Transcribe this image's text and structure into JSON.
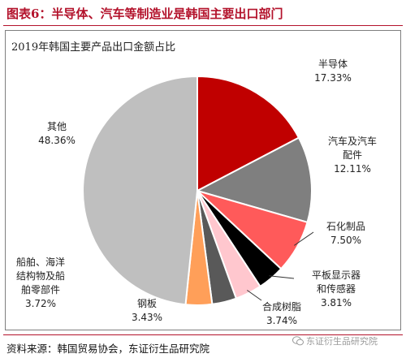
{
  "header": {
    "figure_title": "图表6：半导体、汽车等制造业是韩国主要出口部门"
  },
  "chart_data": {
    "type": "pie",
    "title": "2019年韩国主要产品出口金额占比",
    "slices": [
      {
        "label_lines": [
          "半导体"
        ],
        "value": 17.33,
        "display": "17.33%",
        "color": "#c00000"
      },
      {
        "label_lines": [
          "汽车及汽车",
          "配件"
        ],
        "value": 12.11,
        "display": "12.11%",
        "color": "#7f7f7f"
      },
      {
        "label_lines": [
          "石化制品"
        ],
        "value": 7.5,
        "display": "7.50%",
        "color": "#ff5a5a"
      },
      {
        "label_lines": [
          "平板显示器",
          "和传感器"
        ],
        "value": 3.81,
        "display": "3.81%",
        "color": "#000000"
      },
      {
        "label_lines": [
          "合成树脂"
        ],
        "value": 3.74,
        "display": "3.74%",
        "color": "#ffc7ce"
      },
      {
        "label_lines": [
          "钢板"
        ],
        "value": 3.43,
        "display": "3.43%",
        "color": "#595959"
      },
      {
        "label_lines": [
          "船舶、海洋",
          "结构物及船",
          "舶零部件"
        ],
        "value": 3.72,
        "display": "3.72%",
        "color": "#ff9f59"
      },
      {
        "label_lines": [
          "其他"
        ],
        "value": 48.36,
        "display": "48.36%",
        "color": "#bfbfbf"
      }
    ]
  },
  "footer": {
    "source": "资料来源：韩国贸易协会，东证衍生品研究院",
    "watermark": "东证衍生品研究院",
    "watermark_icon": "wechat-icon"
  }
}
